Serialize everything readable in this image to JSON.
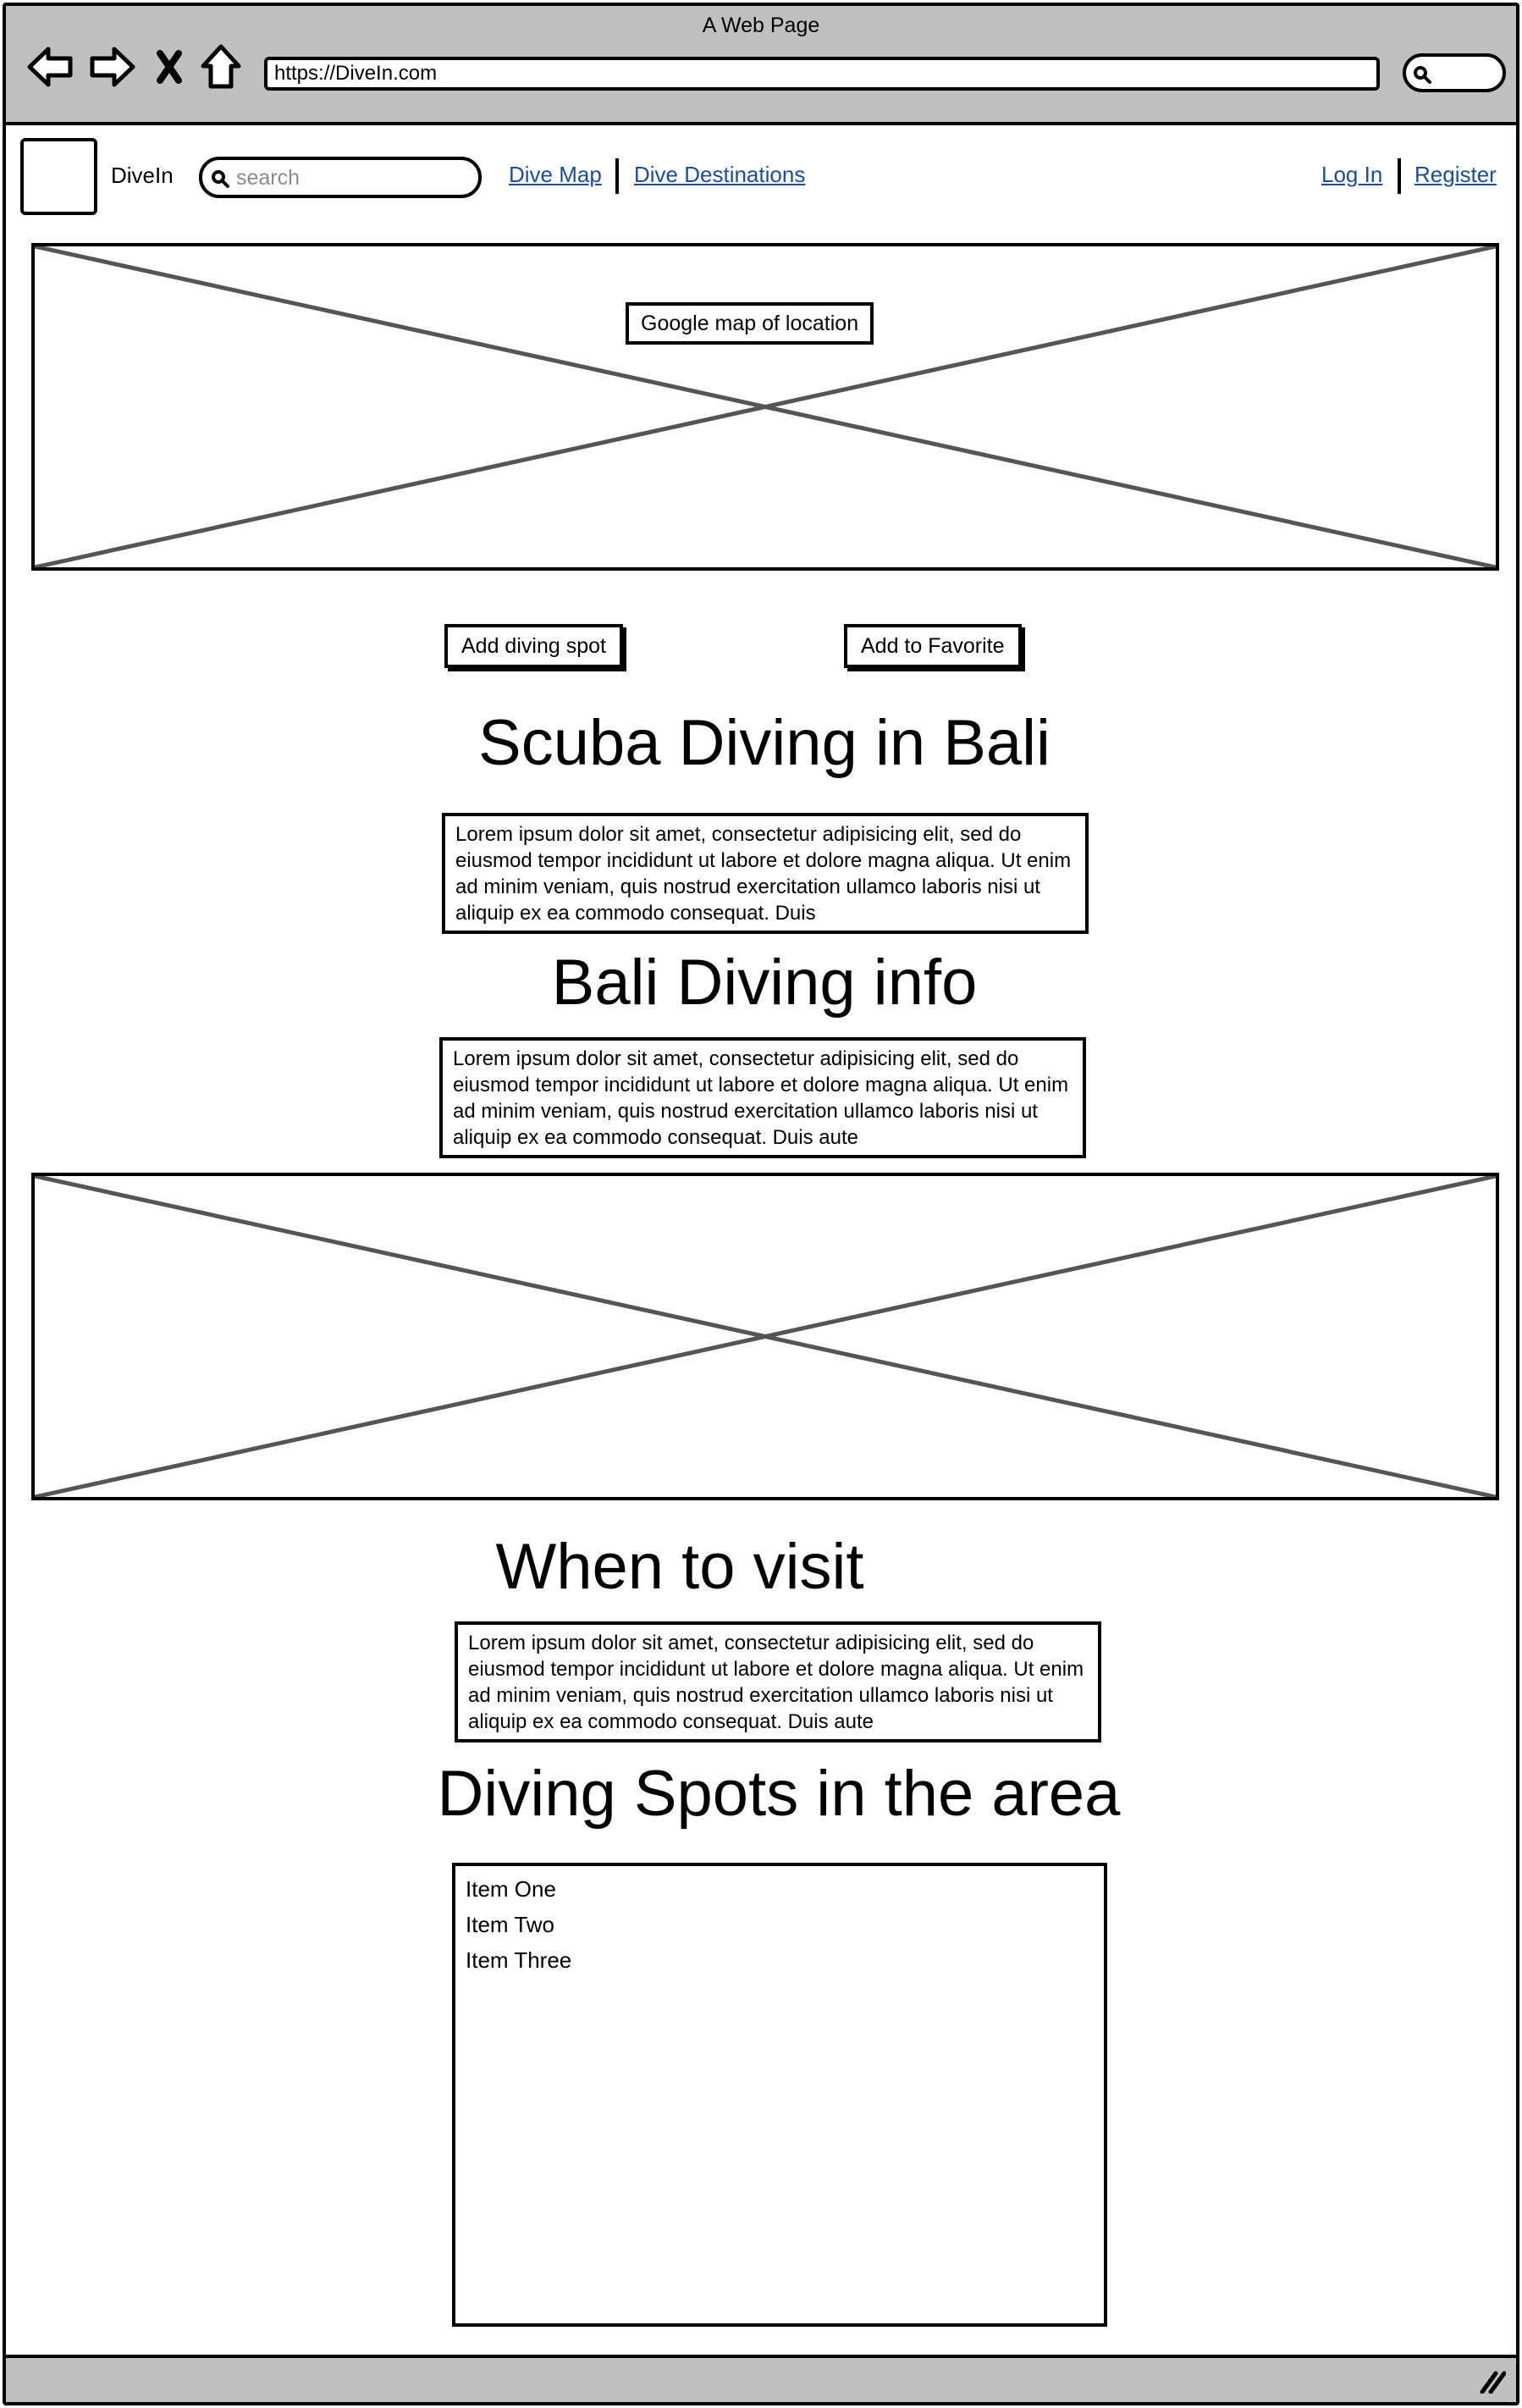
{
  "browser": {
    "window_title": "A Web Page",
    "url": "https://DiveIn.com"
  },
  "header": {
    "brand": "DiveIn",
    "search_placeholder": "search",
    "nav_links": [
      "Dive Map",
      "Dive Destinations"
    ],
    "auth_links": [
      "Log In",
      "Register"
    ]
  },
  "map": {
    "label": "Google map of location"
  },
  "actions": {
    "add_spot": "Add diving spot",
    "add_favorite": "Add to Favorite"
  },
  "sections": [
    {
      "title": "Scuba Diving in Bali",
      "text": "Lorem ipsum dolor sit amet, consectetur adipisicing elit, sed do eiusmod tempor incididunt ut labore et dolore magna aliqua. Ut enim ad minim veniam, quis nostrud exercitation ullamco laboris nisi ut aliquip ex ea commodo consequat. Duis"
    },
    {
      "title": "Bali Diving info",
      "text": "Lorem ipsum dolor sit amet, consectetur adipisicing elit, sed do eiusmod tempor incididunt ut labore et dolore magna aliqua. Ut enim ad minim veniam, quis nostrud exercitation ullamco laboris nisi ut aliquip ex ea commodo consequat. Duis aute"
    },
    {
      "title": "When to visit",
      "text": "Lorem ipsum dolor sit amet, consectetur adipisicing elit, sed do eiusmod tempor incididunt ut labore et dolore magna aliqua. Ut enim ad minim veniam, quis nostrud exercitation ullamco laboris nisi ut aliquip ex ea commodo consequat. Duis aute"
    },
    {
      "title": "Diving Spots in the area"
    }
  ],
  "spots_list": [
    "Item One",
    "Item Two",
    "Item Three"
  ],
  "icons": {
    "back": "arrow-left-icon",
    "forward": "arrow-right-icon",
    "stop": "close-icon",
    "home": "home-icon",
    "search": "search-icon",
    "resize": "resize-grip-icon"
  }
}
